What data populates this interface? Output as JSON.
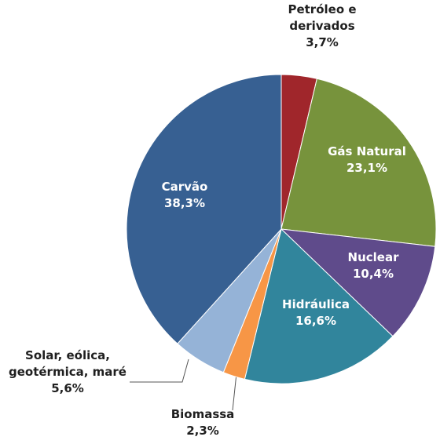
{
  "chart_data": {
    "type": "pie",
    "categories": [
      "Petróleo e derivados",
      "Gás Natural",
      "Nuclear",
      "Hidráulica",
      "Biomassa",
      "Solar, eólica, geotérmica, maré",
      "Carvão"
    ],
    "values": [
      3.7,
      23.1,
      10.4,
      16.6,
      2.3,
      5.6,
      38.3
    ],
    "value_labels": [
      "3,7%",
      "23,1%",
      "10,4%",
      "16,6%",
      "2,3%",
      "5,6%",
      "38,3%"
    ],
    "colors": [
      "#a0262b",
      "#77933c",
      "#5f4b8b",
      "#31859c",
      "#f79646",
      "#95b3d7",
      "#376092"
    ]
  }
}
